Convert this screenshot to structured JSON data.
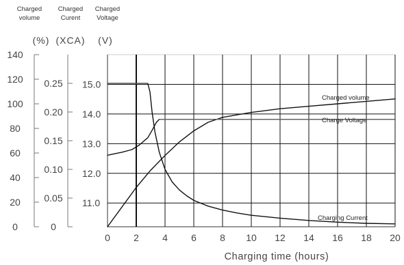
{
  "chart_data": {
    "type": "line",
    "title": "",
    "xlabel": "Charging time (hours)",
    "xlim": [
      0,
      20
    ],
    "x_ticks": [
      "0",
      "2",
      "4",
      "6",
      "8",
      "10",
      "12",
      "14",
      "16",
      "18",
      "20"
    ],
    "axes": [
      {
        "header": [
          "Charged",
          "volume"
        ],
        "unit": "(%)",
        "range": [
          0,
          140
        ],
        "ticks": [
          "0",
          "20",
          "40",
          "60",
          "80",
          "100",
          "120",
          "140"
        ]
      },
      {
        "header": [
          "Charged",
          "Curent"
        ],
        "unit": "(XCA)",
        "range": [
          0,
          0.3
        ],
        "ticks": [
          "0",
          "0.05",
          "0.10",
          "0.15",
          "0.20",
          "0.25"
        ]
      },
      {
        "header": [
          "Charged",
          "Voltage"
        ],
        "unit": "(V)",
        "range": [
          10.2,
          16.0
        ],
        "ticks": [
          "11.0",
          "12.0",
          "13.0",
          "14.0",
          "15.0"
        ]
      }
    ],
    "grid": true,
    "series": [
      {
        "name": "Charged volume",
        "axis": 0,
        "x": [
          0,
          1,
          2,
          3,
          4,
          5,
          6,
          7,
          8,
          9,
          10,
          12,
          14,
          16,
          18,
          20
        ],
        "y": [
          0,
          16,
          32,
          46,
          58,
          69,
          78,
          85,
          89,
          91,
          93,
          96,
          98,
          100,
          102,
          104
        ]
      },
      {
        "name": "Charge Voltage",
        "axis": 2,
        "x": [
          0,
          0.5,
          1,
          1.7,
          2.2,
          2.8,
          3.1,
          3.4,
          3.6,
          3.8,
          5,
          10,
          15,
          20
        ],
        "y": [
          12.61,
          12.66,
          12.71,
          12.8,
          12.95,
          13.2,
          13.45,
          13.72,
          13.82,
          13.82,
          13.82,
          13.82,
          13.82,
          13.82
        ]
      },
      {
        "name": "Charging Current",
        "axis": 1,
        "x": [
          0,
          2,
          2.8,
          2.95,
          3.1,
          3.3,
          3.6,
          4,
          4.5,
          5,
          5.5,
          6,
          7,
          8,
          9,
          10,
          12,
          14,
          16,
          18,
          20
        ],
        "y": [
          0.25,
          0.25,
          0.25,
          0.235,
          0.2,
          0.165,
          0.13,
          0.1,
          0.078,
          0.064,
          0.054,
          0.046,
          0.036,
          0.029,
          0.024,
          0.02,
          0.015,
          0.011,
          0.008,
          0.006,
          0.005
        ]
      }
    ],
    "annotations": [
      {
        "text": "Charged volume",
        "series": 0
      },
      {
        "text": "Charge Voltage",
        "series": 1
      },
      {
        "text": "Charging Current",
        "series": 2
      }
    ]
  }
}
